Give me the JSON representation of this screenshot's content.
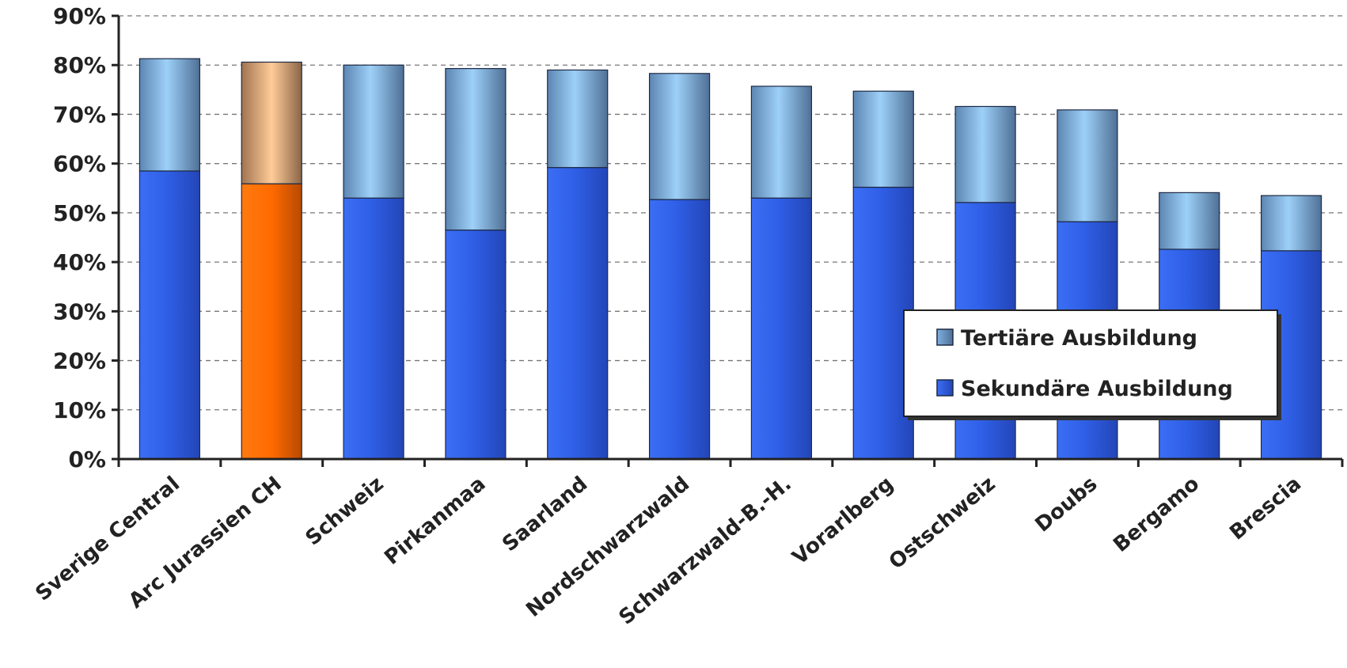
{
  "chart_data": {
    "type": "bar",
    "stacked": true,
    "categories": [
      "Sverige Central",
      "Arc Jurassien CH",
      "Schweiz",
      "Pirkanmaa",
      "Saarland",
      "Nordschwarzwald",
      "Schwarzwald-B.-H.",
      "Vorarlberg",
      "Ostschweiz",
      "Doubs",
      "Bergamo",
      "Brescia"
    ],
    "series": [
      {
        "name": "Sekundäre Ausbildung",
        "values": [
          58.5,
          55.9,
          53.0,
          46.5,
          59.2,
          52.7,
          53.0,
          55.2,
          52.1,
          48.2,
          42.6,
          42.3
        ],
        "color": "#2f5fe6"
      },
      {
        "name": "Tertiäre Ausbildung",
        "values": [
          22.8,
          24.7,
          27.0,
          32.8,
          19.8,
          25.6,
          22.7,
          19.5,
          19.5,
          22.7,
          11.5,
          11.2
        ],
        "color": "#8ec4f0"
      }
    ],
    "highlight": {
      "category": "Arc Jurassien CH",
      "colors": {
        "Sekundäre Ausbildung": "#ff6a00",
        "Tertiäre Ausbildung": "#ffcc99"
      }
    },
    "y_ticks": [
      "0%",
      "10%",
      "20%",
      "30%",
      "40%",
      "50%",
      "60%",
      "70%",
      "80%",
      "90%"
    ],
    "ylim": [
      0,
      90
    ],
    "grid": "horizontal dashed",
    "legend": {
      "position": "lower-right",
      "entries": [
        "Tertiäre Ausbildung",
        "Sekundäre Ausbildung"
      ]
    }
  }
}
